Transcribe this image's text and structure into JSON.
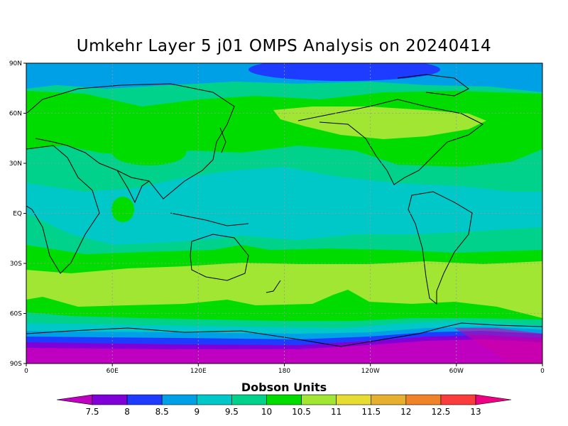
{
  "title": "Umkehr Layer 5 j01 OMPS Analysis on 20240414",
  "map": {
    "lat_ticks": [
      "90N",
      "60N",
      "30N",
      "EQ",
      "30S",
      "60S",
      "90S"
    ],
    "lon_ticks": [
      "0",
      "60E",
      "120E",
      "180",
      "120W",
      "60W",
      "0"
    ]
  },
  "colorbar": {
    "title": "Dobson Units",
    "levels": [
      "7.5",
      "8",
      "8.5",
      "9",
      "9.5",
      "10",
      "10.5",
      "11",
      "11.5",
      "12",
      "12.5",
      "13"
    ],
    "colors": [
      "#c000c0",
      "#8000d8",
      "#1e3cff",
      "#00a0e6",
      "#00c8c8",
      "#00d28c",
      "#00dc00",
      "#a0e632",
      "#e6dc32",
      "#e6af2d",
      "#f08228",
      "#fa3c3c",
      "#f00082"
    ]
  }
}
